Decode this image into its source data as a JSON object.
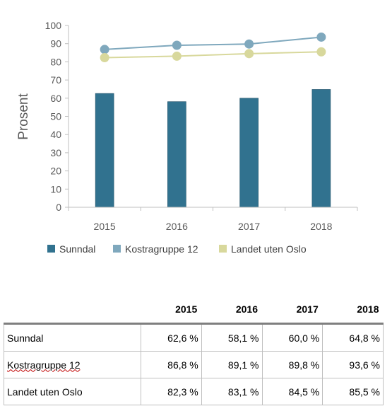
{
  "chart_data": {
    "type": "bar+line",
    "ylabel": "Prosent",
    "ylim": [
      0,
      100
    ],
    "yticks": [
      0,
      10,
      20,
      30,
      40,
      50,
      60,
      70,
      80,
      90,
      100
    ],
    "categories": [
      "2015",
      "2016",
      "2017",
      "2018"
    ],
    "series": [
      {
        "name": "Sunndal",
        "kind": "bar",
        "color": "#31728f",
        "values": [
          62.6,
          58.1,
          60.0,
          64.8
        ]
      },
      {
        "name": "Kostragruppe 12",
        "kind": "line",
        "color": "#7fa8bd",
        "values": [
          86.8,
          89.1,
          89.8,
          93.6
        ]
      },
      {
        "name": "Landet uten Oslo",
        "kind": "line",
        "color": "#d8d89c",
        "values": [
          82.3,
          83.1,
          84.5,
          85.5
        ]
      }
    ],
    "legend": "bottom",
    "grid": false
  },
  "table": {
    "headers": [
      "",
      "2015",
      "2016",
      "2017",
      "2018"
    ],
    "rows": [
      {
        "label": "Sunndal",
        "values": [
          "62,6 %",
          "58,1 %",
          "60,0 %",
          "64,8 %"
        ]
      },
      {
        "label": "Kostragruppe 12",
        "values": [
          "86,8 %",
          "89,1 %",
          "89,8 %",
          "93,6 %"
        ]
      },
      {
        "label": "Landet uten Oslo",
        "values": [
          "82,3 %",
          "83,1 %",
          "84,5 %",
          "85,5 %"
        ]
      }
    ]
  }
}
